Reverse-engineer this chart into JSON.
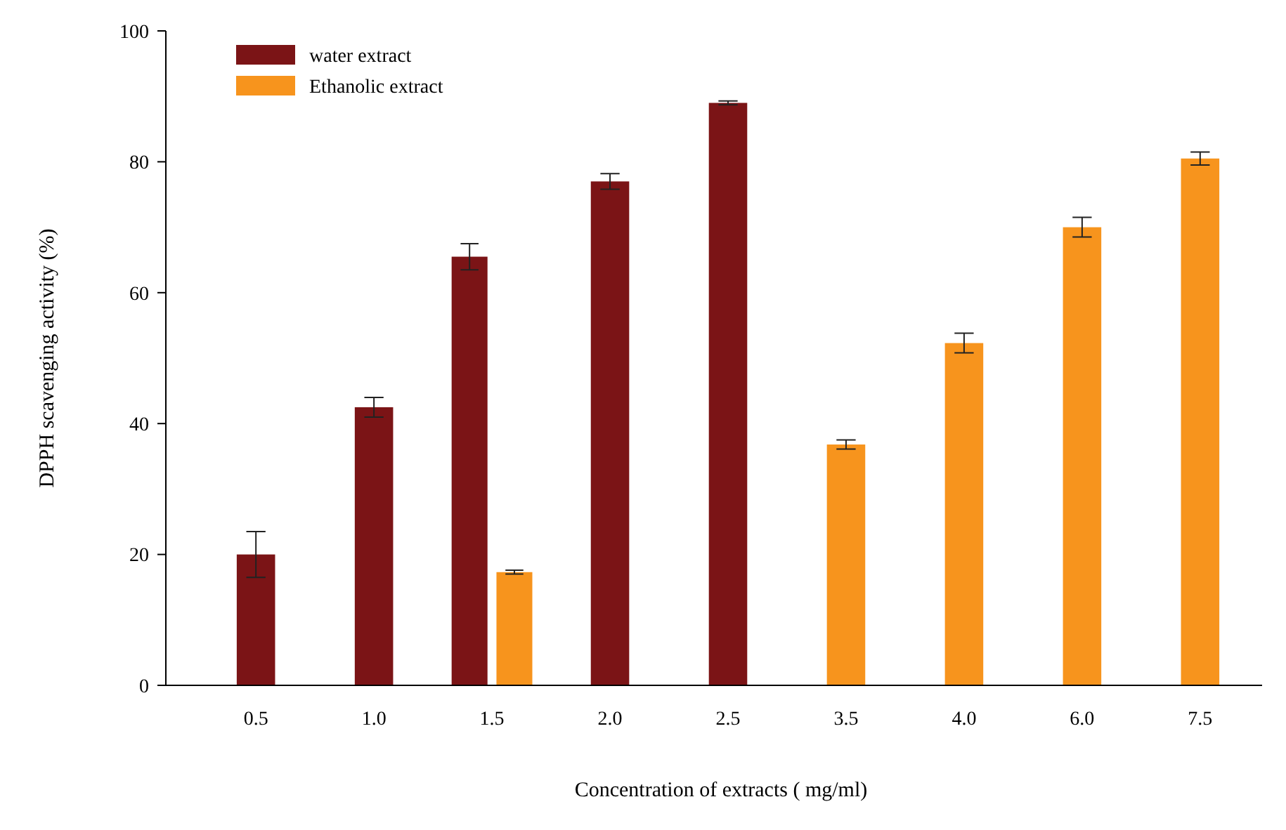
{
  "chart_data": {
    "type": "bar",
    "xlabel": "Concentration of extracts ( mg/ml)",
    "ylabel": "DPPH scavenging activity  (%)",
    "categories": [
      "0.5",
      "1.0",
      "1.5",
      "2.0",
      "2.5",
      "3.5",
      "4.0",
      "6.0",
      "7.5"
    ],
    "series": [
      {
        "name": "water  extract",
        "color": "#7b1416",
        "values": [
          20,
          42.5,
          65.5,
          77,
          89,
          null,
          null,
          null,
          null
        ],
        "errors": [
          3.5,
          1.5,
          2,
          1.2,
          0.3,
          null,
          null,
          null,
          null
        ]
      },
      {
        "name": "Ethanolic extract",
        "color": "#f7941d",
        "values": [
          null,
          null,
          17.3,
          null,
          null,
          36.8,
          52.3,
          70,
          80.5
        ],
        "errors": [
          null,
          null,
          0.3,
          null,
          null,
          0.7,
          1.5,
          1.5,
          1
        ]
      }
    ],
    "ylim": [
      0,
      100
    ],
    "yticks": [
      0,
      20,
      40,
      60,
      80,
      100
    ],
    "grid": false,
    "legend": "top left"
  }
}
